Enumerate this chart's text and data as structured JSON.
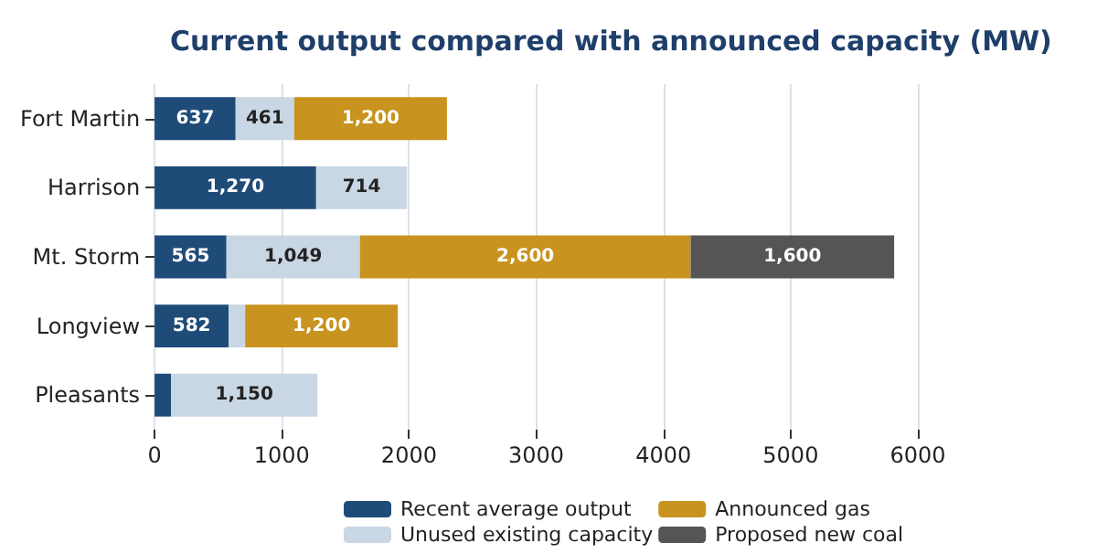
{
  "chart_data": {
    "type": "bar",
    "orientation": "horizontal",
    "stacked": true,
    "title": "Current output compared with announced capacity (MW)",
    "categories": [
      "Fort Martin",
      "Harrison",
      "Mt. Storm",
      "Longview",
      "Pleasants"
    ],
    "series": [
      {
        "name": "Recent average output",
        "color": "#1f4b78",
        "values": [
          637,
          1270,
          565,
          582,
          130
        ],
        "value_labels": [
          "637",
          "1,270",
          "565",
          "582",
          null
        ]
      },
      {
        "name": "Unused existing capacity",
        "color": "#c9d6e3",
        "values": [
          461,
          714,
          1049,
          130,
          1150
        ],
        "value_labels": [
          "461",
          "714",
          "1,049",
          null,
          "1,150"
        ]
      },
      {
        "name": "Announced gas",
        "color": "#c8931e",
        "values": [
          1200,
          null,
          2600,
          1200,
          null
        ],
        "value_labels": [
          "1,200",
          null,
          "2,600",
          "1,200",
          null
        ]
      },
      {
        "name": "Proposed new coal",
        "color": "#555555",
        "values": [
          null,
          null,
          1600,
          null,
          null
        ],
        "value_labels": [
          null,
          null,
          "1,600",
          null,
          null
        ]
      }
    ],
    "xlim": [
      0,
      6000
    ],
    "xticks": [
      0,
      1000,
      2000,
      3000,
      4000,
      5000,
      6000
    ],
    "grid": "x",
    "legend": "bottom"
  }
}
